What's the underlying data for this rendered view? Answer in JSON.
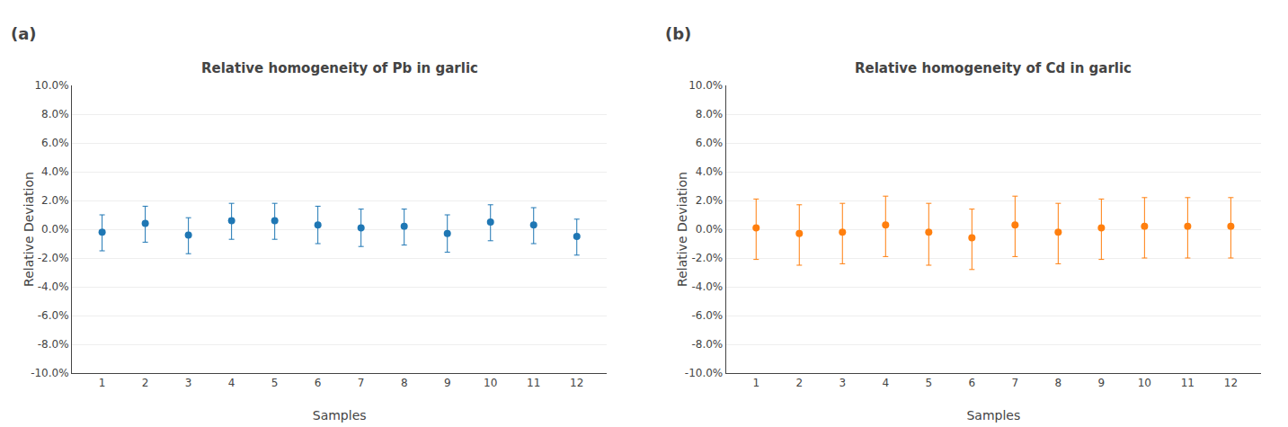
{
  "chart_data": [
    {
      "type": "scatter",
      "annotation": "(a)",
      "title": "Relative homogeneity of Pb in garlic",
      "x_label": "Samples",
      "y_label": "Relative Deviation",
      "x": [
        1,
        2,
        3,
        4,
        5,
        6,
        7,
        8,
        9,
        10,
        11,
        12
      ],
      "values": [
        -0.002,
        0.004,
        -0.004,
        0.006,
        0.006,
        0.003,
        0.001,
        0.002,
        -0.003,
        0.005,
        0.003,
        -0.005
      ],
      "yerr_upper": [
        0.012,
        0.012,
        0.012,
        0.012,
        0.012,
        0.013,
        0.013,
        0.012,
        0.013,
        0.012,
        0.012,
        0.012
      ],
      "yerr_lower": [
        0.013,
        0.013,
        0.013,
        0.013,
        0.013,
        0.013,
        0.013,
        0.013,
        0.013,
        0.013,
        0.013,
        0.013
      ],
      "marker": "circle",
      "xlim": [
        0.3,
        12.7
      ],
      "xticks": [
        1,
        2,
        3,
        4,
        5,
        6,
        7,
        8,
        9,
        10,
        11,
        12
      ],
      "ylim": [
        -0.1,
        0.1
      ],
      "yticks": [
        {
          "value": -0.1,
          "label": "-10.0%"
        },
        {
          "value": -0.08,
          "label": "-8.0%"
        },
        {
          "value": -0.06,
          "label": "-6.0%"
        },
        {
          "value": -0.04,
          "label": "-4.0%"
        },
        {
          "value": -0.02,
          "label": "-2.0%"
        },
        {
          "value": 0.0,
          "label": "0.0%"
        },
        {
          "value": 0.02,
          "label": "2.0%"
        },
        {
          "value": 0.04,
          "label": "4.0%"
        },
        {
          "value": 0.06,
          "label": "6.0%"
        },
        {
          "value": 0.08,
          "label": "8.0%"
        },
        {
          "value": 0.1,
          "label": "10.0%"
        }
      ],
      "grid": true
    },
    {
      "type": "scatter",
      "annotation": "(b)",
      "title": "Relative homogeneity of Cd in garlic",
      "x_label": "Samples",
      "y_label": "Relative Deviation",
      "x": [
        1,
        2,
        3,
        4,
        5,
        6,
        7,
        8,
        9,
        10,
        11,
        12
      ],
      "values": [
        0.001,
        -0.003,
        -0.002,
        0.003,
        -0.002,
        -0.006,
        0.003,
        -0.002,
        0.001,
        0.002,
        0.002,
        0.002
      ],
      "yerr_upper": [
        0.02,
        0.02,
        0.02,
        0.02,
        0.02,
        0.02,
        0.02,
        0.02,
        0.02,
        0.02,
        0.02,
        0.02
      ],
      "yerr_lower": [
        0.022,
        0.022,
        0.022,
        0.022,
        0.023,
        0.022,
        0.022,
        0.022,
        0.022,
        0.022,
        0.022,
        0.022
      ],
      "marker": "circle",
      "xlim": [
        0.3,
        12.7
      ],
      "xticks": [
        1,
        2,
        3,
        4,
        5,
        6,
        7,
        8,
        9,
        10,
        11,
        12
      ],
      "ylim": [
        -0.1,
        0.1
      ],
      "yticks": [
        {
          "value": -0.1,
          "label": "-10.0%"
        },
        {
          "value": -0.08,
          "label": "-8.0%"
        },
        {
          "value": -0.06,
          "label": "-6.0%"
        },
        {
          "value": -0.04,
          "label": "-4.0%"
        },
        {
          "value": -0.02,
          "label": "-2.0%"
        },
        {
          "value": 0.0,
          "label": "0.0%"
        },
        {
          "value": 0.02,
          "label": "2.0%"
        },
        {
          "value": 0.04,
          "label": "4.0%"
        },
        {
          "value": 0.06,
          "label": "6.0%"
        },
        {
          "value": 0.08,
          "label": "8.0%"
        },
        {
          "value": 0.1,
          "label": "10.0%"
        }
      ],
      "grid": true
    }
  ]
}
